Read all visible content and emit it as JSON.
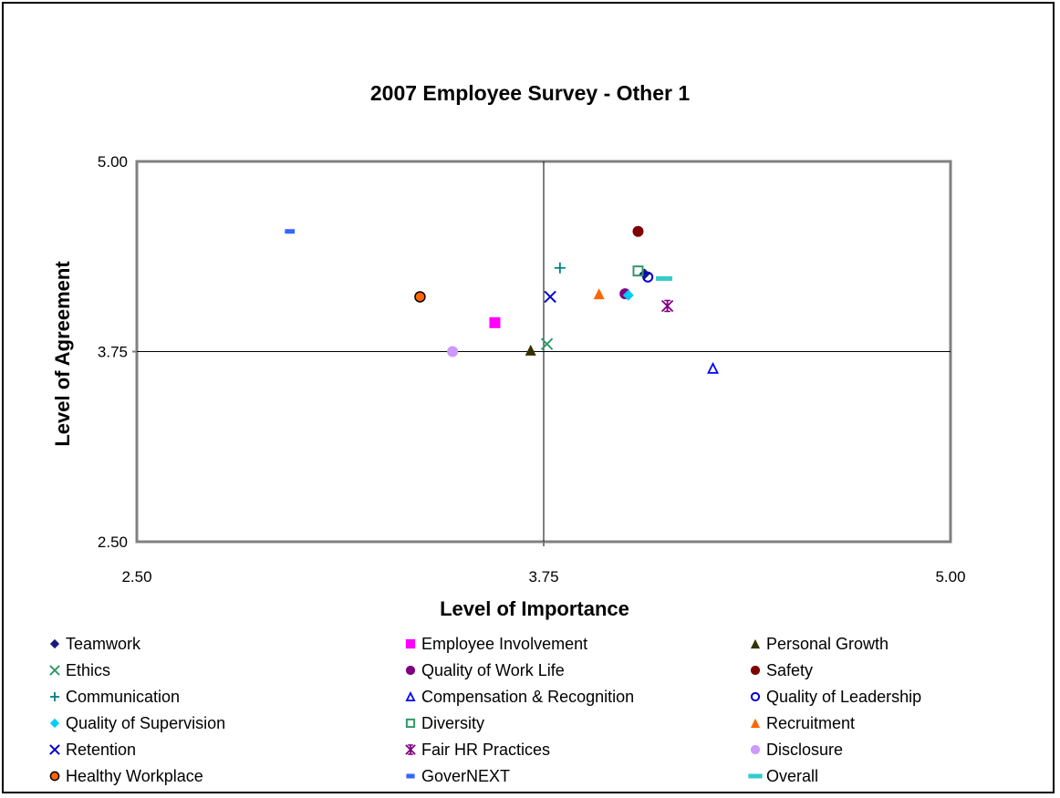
{
  "chart_data": {
    "type": "scatter",
    "title": "2007 Employee Survey - Other 1",
    "xlabel": "Level of Importance",
    "ylabel": "Level of Agreement",
    "xlim": [
      2.5,
      5.0
    ],
    "ylim": [
      2.5,
      5.0
    ],
    "xticks": [
      "2.50",
      "3.75",
      "5.00"
    ],
    "yticks": [
      "2.50",
      "3.75",
      "5.00"
    ],
    "reference_lines": {
      "x": 3.75,
      "y": 3.75
    },
    "legend_position": "bottom",
    "series": [
      {
        "name": "Teamwork",
        "x": 4.06,
        "y": 4.26,
        "marker": "diamond",
        "color": "#1a1a7a",
        "filled": true
      },
      {
        "name": "Employee Involvement",
        "x": 3.6,
        "y": 3.94,
        "marker": "square",
        "color": "#ff00ff",
        "filled": true
      },
      {
        "name": "Personal Growth",
        "x": 3.71,
        "y": 3.76,
        "marker": "triangle",
        "color": "#333300",
        "filled": true
      },
      {
        "name": "Ethics",
        "x": 3.76,
        "y": 3.8,
        "marker": "x",
        "color": "#339966",
        "filled": false
      },
      {
        "name": "Quality of Work Life",
        "x": 4.0,
        "y": 4.13,
        "marker": "circle",
        "color": "#800080",
        "filled": true
      },
      {
        "name": "Safety",
        "x": 4.04,
        "y": 4.54,
        "marker": "circle",
        "color": "#800000",
        "filled": true
      },
      {
        "name": "Communication",
        "x": 3.8,
        "y": 4.3,
        "marker": "plus",
        "color": "#008080",
        "filled": false
      },
      {
        "name": "Compensation & Recognition",
        "x": 4.27,
        "y": 3.64,
        "marker": "triangle",
        "color": "#0000ff",
        "filled": false
      },
      {
        "name": "Quality of Leadership",
        "x": 4.07,
        "y": 4.24,
        "marker": "circle",
        "color": "#0000cc",
        "filled": false
      },
      {
        "name": "Quality of Supervision",
        "x": 4.01,
        "y": 4.12,
        "marker": "diamond",
        "color": "#00ccff",
        "filled": true
      },
      {
        "name": "Diversity",
        "x": 4.04,
        "y": 4.28,
        "marker": "square",
        "color": "#339966",
        "filled": false
      },
      {
        "name": "Recruitment",
        "x": 3.92,
        "y": 4.13,
        "marker": "triangle",
        "color": "#ff6600",
        "filled": true
      },
      {
        "name": "Retention",
        "x": 3.77,
        "y": 4.11,
        "marker": "x",
        "color": "#0000cc",
        "filled": false
      },
      {
        "name": "Fair HR Practices",
        "x": 4.13,
        "y": 4.05,
        "marker": "asterisk",
        "color": "#800080",
        "filled": false
      },
      {
        "name": "Disclosure",
        "x": 3.47,
        "y": 3.75,
        "marker": "circle",
        "color": "#cc99ff",
        "filled": true
      },
      {
        "name": "Healthy Workplace",
        "x": 3.37,
        "y": 4.11,
        "marker": "circle-outlined",
        "color": "#ff6600",
        "filled": true
      },
      {
        "name": "GoverNEXT",
        "x": 2.97,
        "y": 4.54,
        "marker": "dash",
        "color": "#3366ff",
        "filled": true
      },
      {
        "name": "Overall",
        "x": 4.12,
        "y": 4.23,
        "marker": "dash",
        "color": "#33cccc",
        "filled": true
      }
    ]
  }
}
